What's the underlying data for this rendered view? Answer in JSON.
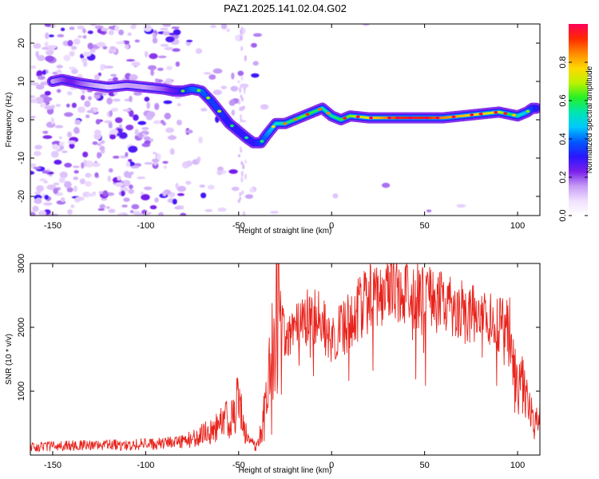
{
  "title": "PAZ1.2025.141.02.04.G02",
  "colors": {
    "trace": "#e8231c",
    "axes": "#000000",
    "background": "#ffffff"
  },
  "chart_data": [
    {
      "type": "heatmap",
      "xlabel": "Height of straight line (km)",
      "ylabel": "Frequency (Hz)",
      "xlim": [
        -162,
        112
      ],
      "ylim": [
        -25,
        25
      ],
      "xticks": [
        -150,
        -100,
        -50,
        0,
        50,
        100
      ],
      "yticks": [
        -20,
        -10,
        0,
        10,
        20
      ],
      "colorbar": {
        "label": "Normalized spectral amplitude",
        "range": [
          0,
          1
        ],
        "ticks": [
          0.0,
          0.2,
          0.4,
          0.6,
          0.8
        ],
        "tick_labels": [
          "0.0",
          "0.2",
          "0.4",
          "0.6",
          "0.8"
        ],
        "colormap": [
          "#ffffff",
          "#f0e0ff",
          "#c59cf5",
          "#7a1fea",
          "#2a16ff",
          "#0059ff",
          "#00c8ff",
          "#00e6b0",
          "#25f025",
          "#bcf200",
          "#ffd800",
          "#ff8a00",
          "#ff2a00",
          "#ff0058"
        ]
      },
      "ridge": {
        "x": [
          -150,
          -145,
          -140,
          -135,
          -128,
          -120,
          -110,
          -100,
          -90,
          -85,
          -80,
          -75,
          -70,
          -65,
          -60,
          -55,
          -50,
          -45,
          -42,
          -38,
          -35,
          -30,
          -25,
          -20,
          -15,
          -10,
          -5,
          0,
          5,
          10,
          20,
          30,
          40,
          50,
          60,
          70,
          80,
          90,
          100,
          105,
          108,
          110
        ],
        "y": [
          10,
          10.5,
          10,
          9.5,
          9,
          8.5,
          9,
          8.5,
          8,
          7.5,
          7.5,
          8,
          7.5,
          5,
          2,
          -1,
          -3,
          -5,
          -6,
          -6,
          -4,
          -1,
          -1,
          0,
          1,
          2,
          3,
          1,
          0,
          1,
          0.5,
          0.5,
          0.5,
          0.5,
          0.5,
          1,
          1.5,
          2,
          1,
          2,
          3,
          3
        ],
        "amplitude": [
          0.15,
          0.2,
          0.25,
          0.2,
          0.15,
          0.1,
          0.15,
          0.15,
          0.2,
          0.25,
          0.3,
          0.4,
          0.4,
          0.35,
          0.35,
          0.3,
          0.3,
          0.3,
          0.3,
          0.35,
          0.4,
          0.5,
          0.55,
          0.6,
          0.65,
          0.6,
          0.55,
          0.55,
          0.6,
          0.65,
          0.75,
          0.85,
          0.95,
          0.95,
          0.85,
          0.8,
          0.75,
          0.7,
          0.55,
          0.45,
          0.35,
          0.3
        ]
      }
    },
    {
      "type": "line",
      "xlabel": "Height of straight line (km)",
      "ylabel": "SNR (10 * v/v)",
      "xlim": [
        -162,
        112
      ],
      "ylim": [
        0,
        3000
      ],
      "xticks": [
        -150,
        -100,
        -50,
        0,
        50,
        100
      ],
      "yticks": [
        1000,
        2000,
        3000
      ],
      "envelope": {
        "x": [
          -162,
          -150,
          -130,
          -110,
          -100,
          -90,
          -80,
          -75,
          -70,
          -65,
          -60,
          -55,
          -52,
          -50,
          -48,
          -45,
          -42,
          -40,
          -38,
          -35,
          -32,
          -30,
          -28,
          -25,
          -20,
          -15,
          -10,
          -5,
          0,
          5,
          10,
          15,
          20,
          25,
          30,
          35,
          40,
          45,
          50,
          55,
          60,
          65,
          70,
          75,
          80,
          85,
          90,
          95,
          97,
          100,
          103,
          106,
          109,
          112
        ],
        "y": [
          130,
          140,
          150,
          160,
          170,
          180,
          200,
          260,
          320,
          380,
          480,
          580,
          680,
          1000,
          500,
          250,
          150,
          130,
          300,
          800,
          1400,
          2000,
          2300,
          1700,
          1900,
          2100,
          2200,
          2050,
          1800,
          1950,
          2100,
          2300,
          2450,
          2550,
          2600,
          2650,
          2600,
          2500,
          2450,
          2400,
          2350,
          2300,
          2250,
          2200,
          2150,
          2100,
          2050,
          2000,
          1400,
          1000,
          1100,
          900,
          400,
          700
        ]
      }
    }
  ]
}
